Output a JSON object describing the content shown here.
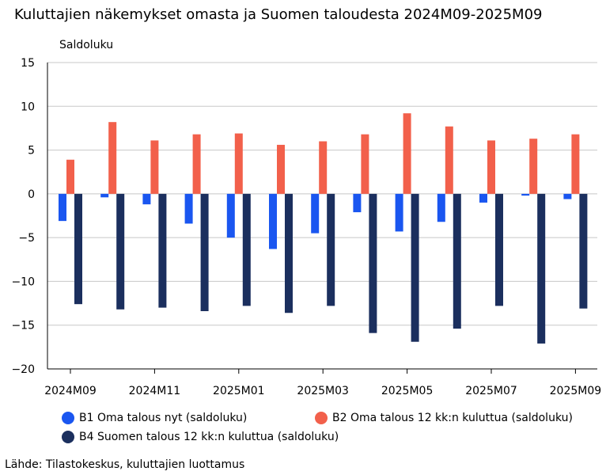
{
  "chart_data": {
    "type": "bar",
    "title": "Kuluttajien näkemykset omasta ja Suomen taloudesta 2024M09-2025M09",
    "ylabel": "Saldoluku",
    "xlabel": "",
    "ylim": [
      -20,
      15
    ],
    "yticks": [
      15,
      10,
      5,
      0,
      -5,
      -10,
      -15,
      -20
    ],
    "grid": true,
    "legend_position": "bottom",
    "categories": [
      "2024M09",
      "2024M10",
      "2024M11",
      "2024M12",
      "2025M01",
      "2025M02",
      "2025M03",
      "2025M04",
      "2025M05",
      "2025M06",
      "2025M07",
      "2025M08",
      "2025M09"
    ],
    "xtick_labels": [
      "2024M09",
      "2024M11",
      "2025M01",
      "2025M03",
      "2025M05",
      "2025M07",
      "2025M09"
    ],
    "series": [
      {
        "name": "B1 Oma talous nyt (saldoluku)",
        "color": "#1a56f0",
        "values": [
          -3.1,
          -0.4,
          -1.2,
          -3.4,
          -5.0,
          -6.3,
          -4.5,
          -2.1,
          -4.3,
          -3.2,
          -1.0,
          -0.2,
          -0.6
        ]
      },
      {
        "name": "B2 Oma talous 12 kk:n kuluttua (saldoluku)",
        "color": "#f2604b",
        "values": [
          3.9,
          8.2,
          6.1,
          6.8,
          6.9,
          5.6,
          6.0,
          6.8,
          9.2,
          7.7,
          6.1,
          6.3,
          6.8
        ]
      },
      {
        "name": "B4 Suomen talous 12 kk:n kuluttua (saldoluku)",
        "color": "#1b2f5e",
        "values": [
          -12.6,
          -13.2,
          -13.0,
          -13.4,
          -12.8,
          -13.6,
          -12.8,
          -15.9,
          -16.9,
          -15.4,
          -12.8,
          -17.1,
          -13.1
        ]
      }
    ]
  },
  "source": "Lähde: Tilastokeskus, kuluttajien luottamus"
}
